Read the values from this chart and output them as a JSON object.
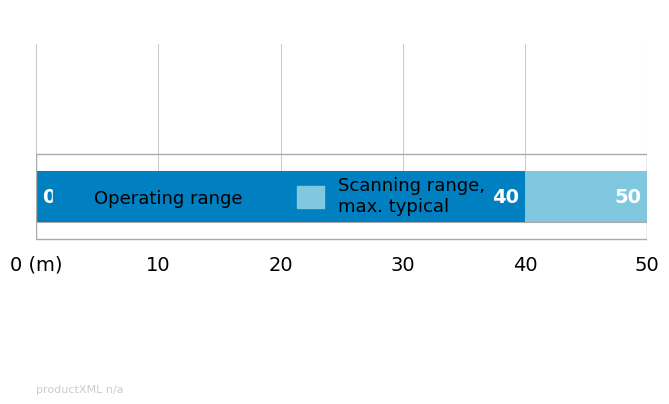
{
  "title": "",
  "x_min": 0,
  "x_max": 50,
  "x_ticks": [
    0,
    10,
    20,
    30,
    40,
    50
  ],
  "x_tick_labels": [
    "0 (m)",
    "10",
    "20",
    "30",
    "40",
    "50"
  ],
  "operating_range": [
    0,
    40
  ],
  "scanning_range": [
    40,
    50
  ],
  "operating_color": "#0080C0",
  "scanning_color": "#80C8E0",
  "bar_label_0": "0",
  "bar_label_40": "40",
  "bar_label_50": "50",
  "label_color": "#ffffff",
  "legend_operating": "Operating range",
  "legend_scanning": "Scanning range,\nmax. typical",
  "watermark": "productXML n/a",
  "watermark_color": "#cccccc",
  "background_color": "#ffffff",
  "bar_height": 0.55,
  "grid_color": "#cccccc",
  "border_color": "#aaaaaa"
}
